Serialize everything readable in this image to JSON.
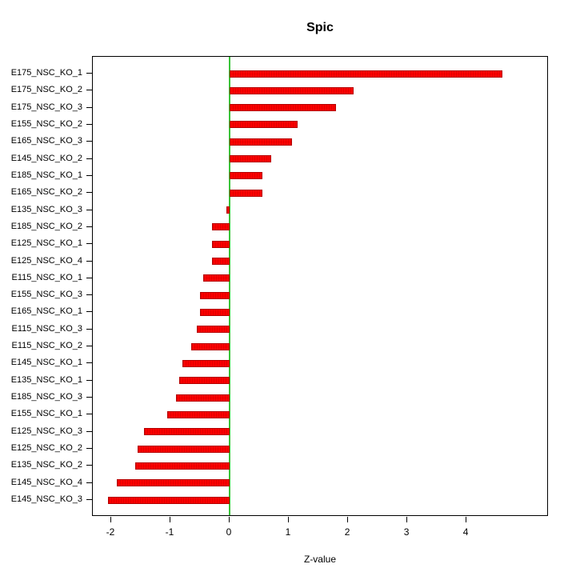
{
  "chart_data": {
    "type": "bar",
    "orientation": "horizontal",
    "title": "Spic",
    "xlabel": "Z-value",
    "ylabel": "",
    "grid": false,
    "legend": "none",
    "xlim": [
      -2.31,
      5.39
    ],
    "xticks": [
      -2,
      -1,
      0,
      1,
      2,
      3,
      4
    ],
    "bar_color": "#fb0000",
    "bar_border_color": "#b50000",
    "zero_line_color": "#39c439",
    "categories": [
      "E175_NSC_KO_1",
      "E175_NSC_KO_2",
      "E175_NSC_KO_3",
      "E155_NSC_KO_2",
      "E165_NSC_KO_3",
      "E145_NSC_KO_2",
      "E185_NSC_KO_1",
      "E165_NSC_KO_2",
      "E135_NSC_KO_3",
      "E185_NSC_KO_2",
      "E125_NSC_KO_1",
      "E125_NSC_KO_4",
      "E115_NSC_KO_1",
      "E155_NSC_KO_3",
      "E165_NSC_KO_1",
      "E115_NSC_KO_3",
      "E115_NSC_KO_2",
      "E145_NSC_KO_1",
      "E135_NSC_KO_1",
      "E185_NSC_KO_3",
      "E155_NSC_KO_1",
      "E125_NSC_KO_3",
      "E125_NSC_KO_2",
      "E135_NSC_KO_2",
      "E145_NSC_KO_4",
      "E145_NSC_KO_3"
    ],
    "values": [
      4.6,
      2.1,
      1.8,
      1.15,
      1.05,
      0.7,
      0.55,
      0.55,
      -0.05,
      -0.3,
      -0.3,
      -0.3,
      -0.45,
      -0.5,
      -0.5,
      -0.55,
      -0.65,
      -0.8,
      -0.85,
      -0.9,
      -1.05,
      -1.45,
      -1.55,
      -1.6,
      -1.9,
      -2.05
    ]
  }
}
